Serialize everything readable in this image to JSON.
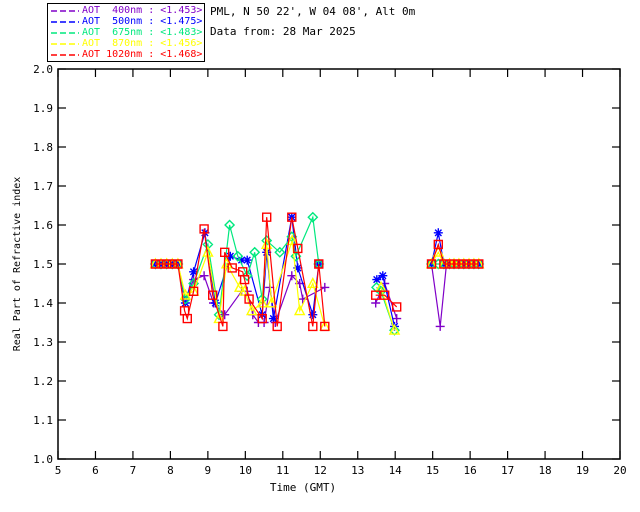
{
  "header": {
    "station_line": "PML, N 50 22', W 04 08', Alt 0m",
    "date_line": "Data from: 28 Mar 2025"
  },
  "legend": {
    "items": [
      {
        "label": "AOT  400nm : <1.453>",
        "color": "#8000C8"
      },
      {
        "label": "AOT  500nm : <1.475>",
        "color": "#0000FF"
      },
      {
        "label": "AOT  675nm : <1.483>",
        "color": "#00E87E"
      },
      {
        "label": "AOT  870nm : <1.456>",
        "color": "#FFFF00"
      },
      {
        "label": "AOT 1020nm : <1.468>",
        "color": "#FF0000"
      }
    ]
  },
  "chart_data": {
    "type": "line",
    "title": "",
    "xlabel": "Time (GMT)",
    "ylabel": "Real Part of Refractive index",
    "xlim": [
      5,
      20
    ],
    "ylim": [
      1.0,
      2.0
    ],
    "xtick_step": 1,
    "ytick_step": 0.1,
    "grid": false,
    "legend_position": "top-left-outside",
    "axis_color": "#000000",
    "series": [
      {
        "name": "AOT 400nm",
        "mean_label": "<1.453>",
        "color": "#8000C8",
        "marker": "plus",
        "segments": [
          [
            [
              7.6,
              1.5
            ],
            [
              7.75,
              1.5
            ],
            [
              7.9,
              1.5
            ],
            [
              8.05,
              1.5
            ],
            [
              8.2,
              1.5
            ],
            [
              8.4,
              1.41
            ],
            [
              8.62,
              1.46
            ],
            [
              8.9,
              1.47
            ],
            [
              9.15,
              1.4
            ],
            [
              9.45,
              1.37
            ],
            [
              9.9,
              1.43
            ],
            [
              10.05,
              1.43
            ],
            [
              10.2,
              1.37
            ],
            [
              10.35,
              1.35
            ],
            [
              10.5,
              1.35
            ],
            [
              10.65,
              1.44
            ],
            [
              10.8,
              1.35
            ],
            [
              11.24,
              1.47
            ],
            [
              11.45,
              1.45
            ],
            [
              11.53,
              1.41
            ],
            [
              12.12,
              1.44
            ]
          ],
          [
            [
              13.48,
              1.4
            ],
            [
              13.72,
              1.45
            ],
            [
              14.04,
              1.36
            ]
          ],
          [
            [
              14.97,
              1.5
            ],
            [
              15.2,
              1.34
            ],
            [
              15.37,
              1.5
            ],
            [
              15.45,
              1.5
            ],
            [
              15.57,
              1.5
            ],
            [
              15.7,
              1.5
            ],
            [
              15.83,
              1.5
            ],
            [
              15.97,
              1.5
            ],
            [
              16.1,
              1.5
            ],
            [
              16.23,
              1.5
            ]
          ]
        ]
      },
      {
        "name": "AOT 500nm",
        "mean_label": "<1.475>",
        "color": "#0000FF",
        "marker": "asterisk",
        "segments": [
          [
            [
              7.6,
              1.5
            ],
            [
              7.75,
              1.5
            ],
            [
              7.9,
              1.5
            ],
            [
              8.05,
              1.5
            ],
            [
              8.2,
              1.5
            ],
            [
              8.4,
              1.4
            ],
            [
              8.62,
              1.48
            ],
            [
              8.92,
              1.58
            ],
            [
              9.2,
              1.4
            ],
            [
              9.6,
              1.52
            ],
            [
              9.9,
              1.51
            ],
            [
              10.05,
              1.51
            ],
            [
              10.45,
              1.37
            ],
            [
              10.57,
              1.53
            ],
            [
              10.75,
              1.36
            ],
            [
              11.24,
              1.62
            ],
            [
              11.4,
              1.49
            ],
            [
              11.8,
              1.37
            ],
            [
              11.96,
              1.5
            ]
          ],
          [
            [
              13.51,
              1.46
            ],
            [
              13.67,
              1.47
            ],
            [
              13.98,
              1.34
            ]
          ],
          [
            [
              14.97,
              1.5
            ],
            [
              15.15,
              1.58
            ],
            [
              15.3,
              1.5
            ],
            [
              15.45,
              1.5
            ],
            [
              15.57,
              1.5
            ],
            [
              15.7,
              1.5
            ],
            [
              15.83,
              1.5
            ],
            [
              15.97,
              1.5
            ],
            [
              16.1,
              1.5
            ],
            [
              16.23,
              1.5
            ]
          ]
        ]
      },
      {
        "name": "AOT 675nm",
        "mean_label": "<1.483>",
        "color": "#00E87E",
        "marker": "diamond",
        "segments": [
          [
            [
              7.6,
              1.5
            ],
            [
              7.75,
              1.5
            ],
            [
              7.9,
              1.5
            ],
            [
              8.05,
              1.5
            ],
            [
              8.2,
              1.5
            ],
            [
              8.4,
              1.41
            ],
            [
              8.62,
              1.45
            ],
            [
              9.0,
              1.55
            ],
            [
              9.3,
              1.37
            ],
            [
              9.58,
              1.6
            ],
            [
              9.8,
              1.52
            ],
            [
              10.05,
              1.47
            ],
            [
              10.25,
              1.53
            ],
            [
              10.45,
              1.41
            ],
            [
              10.57,
              1.56
            ],
            [
              10.92,
              1.53
            ],
            [
              11.24,
              1.57
            ],
            [
              11.35,
              1.52
            ],
            [
              11.8,
              1.62
            ],
            [
              11.96,
              1.5
            ]
          ],
          [
            [
              13.5,
              1.44
            ],
            [
              13.62,
              1.43
            ],
            [
              13.98,
              1.33
            ]
          ],
          [
            [
              14.97,
              1.5
            ],
            [
              15.15,
              1.5
            ],
            [
              15.3,
              1.5
            ],
            [
              15.45,
              1.5
            ],
            [
              15.57,
              1.5
            ],
            [
              15.7,
              1.5
            ],
            [
              15.83,
              1.5
            ],
            [
              15.97,
              1.5
            ],
            [
              16.1,
              1.5
            ],
            [
              16.23,
              1.5
            ]
          ]
        ]
      },
      {
        "name": "AOT 870nm",
        "mean_label": "<1.456>",
        "color": "#FFFF00",
        "marker": "triangle",
        "segments": [
          [
            [
              7.6,
              1.5
            ],
            [
              7.75,
              1.5
            ],
            [
              7.9,
              1.5
            ],
            [
              8.05,
              1.5
            ],
            [
              8.2,
              1.5
            ],
            [
              8.4,
              1.42
            ],
            [
              8.62,
              1.43
            ],
            [
              9.0,
              1.53
            ],
            [
              9.3,
              1.36
            ],
            [
              9.5,
              1.5
            ],
            [
              9.85,
              1.44
            ],
            [
              9.98,
              1.43
            ],
            [
              10.17,
              1.38
            ],
            [
              10.45,
              1.4
            ],
            [
              10.57,
              1.55
            ],
            [
              10.7,
              1.4
            ],
            [
              11.25,
              1.56
            ],
            [
              11.45,
              1.38
            ],
            [
              11.8,
              1.45
            ],
            [
              12.12,
              1.34
            ]
          ],
          [
            [
              13.62,
              1.44
            ],
            [
              13.98,
              1.33
            ]
          ],
          [
            [
              14.97,
              1.5
            ],
            [
              15.15,
              1.53
            ],
            [
              15.3,
              1.5
            ],
            [
              15.45,
              1.5
            ],
            [
              15.57,
              1.5
            ],
            [
              15.7,
              1.5
            ],
            [
              15.83,
              1.5
            ],
            [
              15.97,
              1.5
            ],
            [
              16.1,
              1.5
            ],
            [
              16.23,
              1.5
            ]
          ]
        ]
      },
      {
        "name": "AOT 1020nm",
        "mean_label": "<1.468>",
        "color": "#FF0000",
        "marker": "square",
        "segments": [
          [
            [
              7.6,
              1.5
            ],
            [
              7.75,
              1.5
            ],
            [
              7.9,
              1.5
            ],
            [
              8.05,
              1.5
            ],
            [
              8.2,
              1.5
            ],
            [
              8.38,
              1.38
            ],
            [
              8.45,
              1.36
            ],
            [
              8.62,
              1.43
            ],
            [
              8.9,
              1.59
            ],
            [
              9.13,
              1.42
            ],
            [
              9.4,
              1.34
            ],
            [
              9.45,
              1.53
            ],
            [
              9.65,
              1.49
            ],
            [
              9.93,
              1.48
            ],
            [
              9.98,
              1.46
            ],
            [
              10.1,
              1.41
            ],
            [
              10.45,
              1.36
            ],
            [
              10.57,
              1.62
            ],
            [
              10.85,
              1.34
            ],
            [
              11.24,
              1.62
            ],
            [
              11.4,
              1.54
            ],
            [
              11.8,
              1.34
            ],
            [
              11.96,
              1.5
            ],
            [
              12.12,
              1.34
            ]
          ],
          [
            [
              13.48,
              1.42
            ],
            [
              13.72,
              1.42
            ],
            [
              14.04,
              1.39
            ]
          ],
          [
            [
              14.97,
              1.5
            ],
            [
              15.15,
              1.55
            ],
            [
              15.3,
              1.5
            ],
            [
              15.45,
              1.5
            ],
            [
              15.57,
              1.5
            ],
            [
              15.7,
              1.5
            ],
            [
              15.83,
              1.5
            ],
            [
              15.97,
              1.5
            ],
            [
              16.1,
              1.5
            ],
            [
              16.23,
              1.5
            ]
          ]
        ]
      }
    ]
  }
}
